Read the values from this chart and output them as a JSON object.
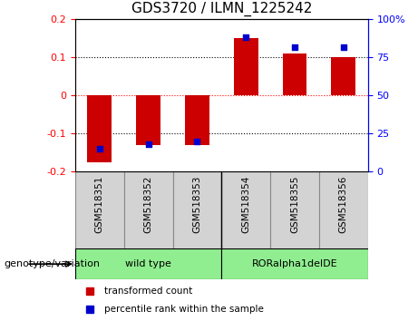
{
  "title": "GDS3720 / ILMN_1225242",
  "samples": [
    "GSM518351",
    "GSM518352",
    "GSM518353",
    "GSM518354",
    "GSM518355",
    "GSM518356"
  ],
  "transformed_count": [
    -0.175,
    -0.13,
    -0.13,
    0.15,
    0.11,
    0.1
  ],
  "percentile_rank": [
    15,
    18,
    20,
    88,
    82,
    82
  ],
  "bar_color": "#cc0000",
  "dot_color": "#0000cc",
  "ylim_left": [
    -0.2,
    0.2
  ],
  "ylim_right": [
    0,
    100
  ],
  "yticks_left": [
    -0.2,
    -0.1,
    0.0,
    0.1,
    0.2
  ],
  "yticks_right": [
    0,
    25,
    50,
    75,
    100
  ],
  "ytick_labels_left": [
    "-0.2",
    "-0.1",
    "0",
    "0.1",
    "0.2"
  ],
  "ytick_labels_right": [
    "0",
    "25",
    "50",
    "75",
    "100%"
  ],
  "hline_y_left": [
    0.1,
    0.0,
    -0.1
  ],
  "hline_colors": [
    "black",
    "red",
    "black"
  ],
  "hline_styles": [
    "dotted",
    "dotted",
    "dotted"
  ],
  "group1_label": "wild type",
  "group2_label": "RORalpha1delDE",
  "group_color": "#90EE90",
  "xlabel_color": "#d3d3d3",
  "group_label_text": "genotype/variation",
  "legend_items": [
    {
      "label": "transformed count",
      "color": "#cc0000"
    },
    {
      "label": "percentile rank within the sample",
      "color": "#0000cc"
    }
  ],
  "bar_width": 0.5,
  "plot_bg_color": "#ffffff",
  "tick_label_fontsize": 8,
  "title_fontsize": 11,
  "sample_label_fontsize": 7.5
}
